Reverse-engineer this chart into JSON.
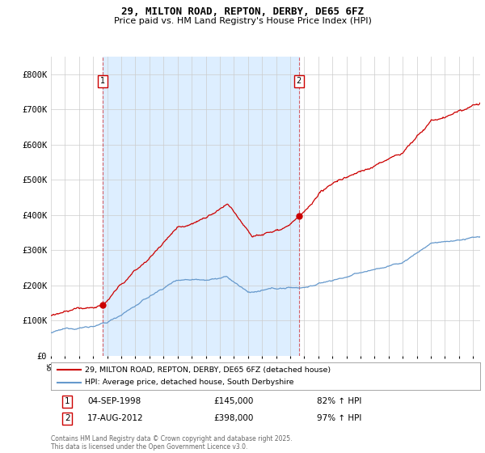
{
  "title": "29, MILTON ROAD, REPTON, DERBY, DE65 6FZ",
  "subtitle": "Price paid vs. HM Land Registry's House Price Index (HPI)",
  "legend_line1": "29, MILTON ROAD, REPTON, DERBY, DE65 6FZ (detached house)",
  "legend_line2": "HPI: Average price, detached house, South Derbyshire",
  "annotation1_date": "04-SEP-1998",
  "annotation1_price": "£145,000",
  "annotation1_hpi": "82% ↑ HPI",
  "annotation2_date": "17-AUG-2012",
  "annotation2_price": "£398,000",
  "annotation2_hpi": "97% ↑ HPI",
  "footer": "Contains HM Land Registry data © Crown copyright and database right 2025.\nThis data is licensed under the Open Government Licence v3.0.",
  "red_color": "#cc0000",
  "blue_color": "#6699cc",
  "fill_color": "#ddeeff",
  "background_color": "#ffffff",
  "grid_color": "#cccccc",
  "ylim": [
    0,
    850000
  ],
  "yticks": [
    0,
    100000,
    200000,
    300000,
    400000,
    500000,
    600000,
    700000,
    800000
  ],
  "ytick_labels": [
    "£0",
    "£100K",
    "£200K",
    "£300K",
    "£400K",
    "£500K",
    "£600K",
    "£700K",
    "£800K"
  ],
  "xlim_start": 1995,
  "xlim_end": 2025.5,
  "sale1_x": 1998.67,
  "sale1_y": 145000,
  "sale2_x": 2012.62,
  "sale2_y": 398000
}
